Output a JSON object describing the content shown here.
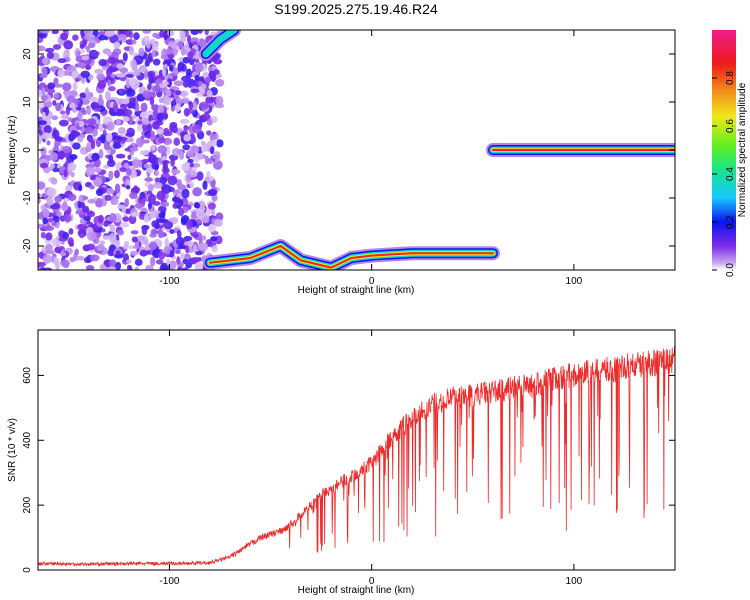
{
  "title": "S199.2025.275.19.46.R24",
  "colors": {
    "snr_line": "#ee2a2a",
    "colormap": [
      "#ffffff",
      "#c9a6f2",
      "#7d2ae8",
      "#0a14f0",
      "#14c8ff",
      "#18e68a",
      "#62ee1e",
      "#f2e81a",
      "#f28a1a",
      "#ee1a1a",
      "#f01a8c"
    ]
  },
  "chart_data": [
    {
      "type": "heatmap",
      "xlabel": "Height of straight line (km)",
      "ylabel": "Frequency (Hz)",
      "xlim": [
        -165,
        150
      ],
      "ylim": [
        -25,
        25
      ],
      "x_ticks": [
        -100,
        0,
        100
      ],
      "x_tick_labels": [
        "-100",
        "0",
        "100"
      ],
      "y_ticks": [
        -20,
        -10,
        0,
        10,
        20
      ],
      "y_tick_labels": [
        "-20",
        "-10",
        "0",
        "10",
        "20"
      ],
      "colorbar": {
        "label": "Normalized spectral amplitude",
        "range": [
          0,
          1
        ],
        "ticks": [
          0.0,
          0.2,
          0.4,
          0.6,
          0.8
        ],
        "tick_labels": [
          "0.0",
          "0.2",
          "0.4",
          "0.6",
          "0.8"
        ]
      },
      "features": [
        {
          "name": "noise",
          "x_range": [
            -165,
            -75
          ],
          "y_range": [
            -25,
            25
          ],
          "amplitude": 0.15
        },
        {
          "name": "lower_track",
          "points": [
            [
              -80,
              -23.5
            ],
            [
              -60,
              -22.5
            ],
            [
              -45,
              -20
            ],
            [
              -35,
              -23
            ],
            [
              -20,
              -24.5
            ],
            [
              -10,
              -22.5
            ],
            [
              0,
              -22
            ],
            [
              20,
              -21.5
            ],
            [
              60,
              -21.5
            ]
          ],
          "amplitude": 0.85
        },
        {
          "name": "upper_track",
          "points": [
            [
              -82,
              20
            ],
            [
              -75,
              23
            ],
            [
              -68,
              25
            ]
          ],
          "amplitude": 0.4
        },
        {
          "name": "zero_track",
          "points": [
            [
              60,
              0
            ],
            [
              150,
              0
            ]
          ],
          "amplitude": 0.9
        }
      ]
    },
    {
      "type": "line",
      "xlabel": "Height of straight line (km)",
      "ylabel": "SNR (10 * v/v)",
      "xlim": [
        -165,
        150
      ],
      "ylim": [
        0,
        740
      ],
      "x_ticks": [
        -100,
        0,
        100
      ],
      "x_tick_labels": [
        "-100",
        "0",
        "100"
      ],
      "y_ticks": [
        0,
        200,
        400,
        600
      ],
      "y_tick_labels": [
        "0",
        "200",
        "400",
        "600"
      ],
      "series": [
        {
          "x": [
            -165,
            -140,
            -120,
            -100,
            -80,
            -70,
            -65,
            -60,
            -55,
            -50,
            -45,
            -40,
            -35,
            -30,
            -25,
            -20,
            -15,
            -10,
            -5,
            0,
            5,
            10,
            15,
            20,
            30,
            40,
            50,
            60,
            70,
            80,
            90,
            100,
            110,
            120,
            130,
            140,
            150
          ],
          "y": [
            20,
            18,
            20,
            20,
            22,
            40,
            60,
            80,
            100,
            110,
            120,
            140,
            170,
            200,
            230,
            250,
            270,
            290,
            310,
            330,
            370,
            410,
            440,
            470,
            510,
            530,
            540,
            550,
            560,
            570,
            590,
            600,
            610,
            620,
            630,
            640,
            650
          ]
        }
      ]
    }
  ]
}
